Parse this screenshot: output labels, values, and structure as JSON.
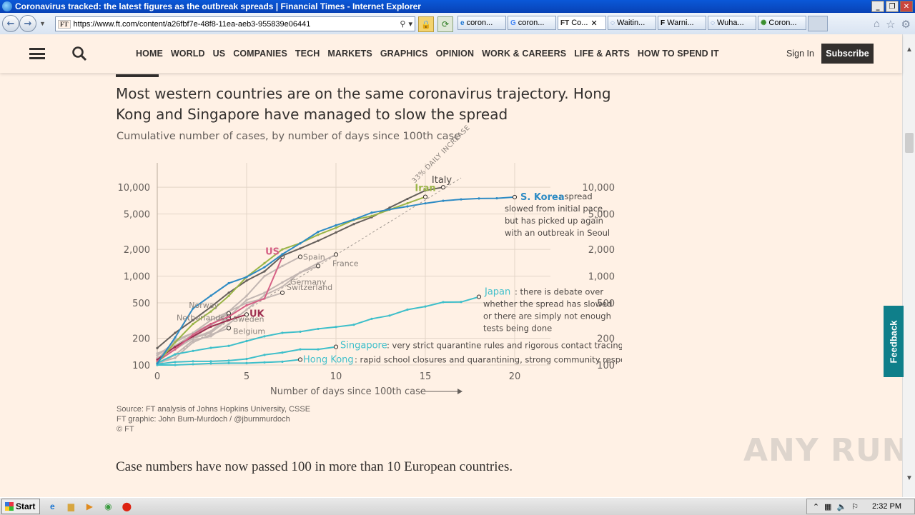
{
  "window": {
    "title": "Coronavirus tracked: the latest figures as the outbreak spreads | Financial Times - Internet Explorer"
  },
  "browser": {
    "url": "https://www.ft.com/content/a26fbf7e-48f8-11ea-aeb3-955839e06441",
    "favicon_text": "FT",
    "tabs": [
      {
        "label": "coron...",
        "icon": "ie-icon"
      },
      {
        "label": "coron...",
        "icon": "google-icon"
      },
      {
        "label": "Co...",
        "icon": "ft-icon",
        "active": true
      },
      {
        "label": "Waitin...",
        "icon": "loading-icon"
      },
      {
        "label": "Warni...",
        "icon": "f-icon"
      },
      {
        "label": "Wuha...",
        "icon": "loading-icon"
      },
      {
        "label": "Coron...",
        "icon": "virus-icon"
      }
    ]
  },
  "ft_header": {
    "nav": [
      "HOME",
      "WORLD",
      "US",
      "COMPANIES",
      "TECH",
      "MARKETS",
      "GRAPHICS",
      "OPINION",
      "WORK & CAREERS",
      "LIFE & ARTS",
      "HOW TO SPEND IT"
    ],
    "signin": "Sign In",
    "subscribe": "Subscribe"
  },
  "article": {
    "chart_title": "Most western countries are on the same coronavirus trajectory. Hong Kong and Singapore have managed to slow the spread",
    "chart_subtitle": "Cumulative number of cases, by number of days since 100th case",
    "source": [
      "Source: FT analysis of Johns Hopkins University, CSSE",
      "FT graphic: John Burn-Murdoch / @jburnmurdoch",
      "© FT"
    ],
    "body": "Case numbers have now passed 100 in more than 10 European countries."
  },
  "feedback": "Feedback",
  "watermark": "ANY RUN",
  "taskbar": {
    "start": "Start",
    "time": "2:32 PM"
  },
  "colors": {
    "background": "#fff1e5",
    "accent": "#33302e"
  },
  "chart_data": {
    "type": "line",
    "xlabel": "Number of days since 100th case",
    "xlim": [
      0,
      22
    ],
    "ylim": [
      100,
      13000
    ],
    "yscale": "log",
    "x_ticks": [
      0,
      5,
      10,
      15,
      20
    ],
    "y_ticks": [
      100,
      200,
      500,
      1000,
      2000,
      5000,
      10000
    ],
    "y_tick_labels": [
      "100",
      "200",
      "500",
      "1,000",
      "2,000",
      "5,000",
      "10,000"
    ],
    "reference_line": {
      "label": "33% DAILY INCREASE",
      "rate": 1.33
    },
    "series": [
      {
        "name": "Iran",
        "color": "#9bb548",
        "values": [
          [
            0,
            105
          ],
          [
            1,
            180
          ],
          [
            2,
            290
          ],
          [
            3,
            400
          ],
          [
            4,
            600
          ],
          [
            5,
            980
          ],
          [
            6,
            1400
          ],
          [
            7,
            2000
          ],
          [
            8,
            2350
          ],
          [
            9,
            2920
          ],
          [
            10,
            3500
          ],
          [
            11,
            4300
          ],
          [
            12,
            4750
          ],
          [
            13,
            5600
          ],
          [
            14,
            6600
          ],
          [
            15,
            7800
          ]
        ]
      },
      {
        "name": "Italy",
        "color": "#66605c",
        "values": [
          [
            0,
            155
          ],
          [
            1,
            230
          ],
          [
            2,
            320
          ],
          [
            3,
            450
          ],
          [
            4,
            650
          ],
          [
            5,
            890
          ],
          [
            6,
            1130
          ],
          [
            7,
            1700
          ],
          [
            8,
            2050
          ],
          [
            9,
            2500
          ],
          [
            10,
            3100
          ],
          [
            11,
            3850
          ],
          [
            12,
            4600
          ],
          [
            13,
            5900
          ],
          [
            14,
            7400
          ],
          [
            15,
            9200
          ],
          [
            16,
            10000
          ]
        ]
      },
      {
        "name": "S. Korea",
        "color": "#2e8bc4",
        "values": [
          [
            0,
            104
          ],
          [
            1,
            204
          ],
          [
            2,
            433
          ],
          [
            3,
            602
          ],
          [
            4,
            833
          ],
          [
            5,
            977
          ],
          [
            6,
            1261
          ],
          [
            7,
            1766
          ],
          [
            8,
            2337
          ],
          [
            9,
            3150
          ],
          [
            10,
            3736
          ],
          [
            11,
            4335
          ],
          [
            12,
            5186
          ],
          [
            13,
            5621
          ],
          [
            14,
            6088
          ],
          [
            15,
            6593
          ],
          [
            16,
            7041
          ],
          [
            17,
            7313
          ],
          [
            18,
            7478
          ],
          [
            19,
            7513
          ],
          [
            20,
            7755
          ]
        ]
      },
      {
        "name": "US",
        "color": "#d66085",
        "values": [
          [
            0,
            110
          ],
          [
            1,
            150
          ],
          [
            2,
            220
          ],
          [
            3,
            290
          ],
          [
            4,
            350
          ],
          [
            5,
            470
          ],
          [
            6,
            560
          ],
          [
            7,
            1650
          ]
        ]
      },
      {
        "name": "Spain",
        "color": "#c2b6b2",
        "values": [
          [
            0,
            115
          ],
          [
            1,
            165
          ],
          [
            2,
            220
          ],
          [
            3,
            280
          ],
          [
            4,
            400
          ],
          [
            5,
            600
          ],
          [
            6,
            1000
          ],
          [
            7,
            1300
          ],
          [
            8,
            1650
          ]
        ]
      },
      {
        "name": "France",
        "color": "#c2b6b2",
        "values": [
          [
            0,
            100
          ],
          [
            1,
            130
          ],
          [
            2,
            190
          ],
          [
            3,
            210
          ],
          [
            4,
            290
          ],
          [
            5,
            420
          ],
          [
            6,
            610
          ],
          [
            7,
            760
          ],
          [
            8,
            1100
          ],
          [
            9,
            1400
          ],
          [
            10,
            1750
          ]
        ]
      },
      {
        "name": "Germany",
        "color": "#c2b6b2",
        "values": [
          [
            0,
            120
          ],
          [
            1,
            160
          ],
          [
            2,
            200
          ],
          [
            3,
            240
          ],
          [
            4,
            350
          ],
          [
            5,
            540
          ],
          [
            6,
            650
          ],
          [
            7,
            850
          ],
          [
            8,
            1100
          ],
          [
            9,
            1300
          ]
        ]
      },
      {
        "name": "Switzerland",
        "color": "#c2b6b2",
        "values": [
          [
            0,
            115
          ],
          [
            1,
            190
          ],
          [
            2,
            230
          ],
          [
            3,
            320
          ],
          [
            4,
            400
          ],
          [
            5,
            500
          ],
          [
            6,
            560
          ],
          [
            7,
            650
          ]
        ]
      },
      {
        "name": "Norway",
        "color": "#c2b6b2",
        "values": [
          [
            0,
            110
          ],
          [
            1,
            150
          ],
          [
            2,
            200
          ],
          [
            3,
            280
          ],
          [
            4,
            380
          ]
        ]
      },
      {
        "name": "Netherlands",
        "color": "#c2b6b2",
        "values": [
          [
            0,
            128
          ],
          [
            1,
            180
          ],
          [
            2,
            230
          ],
          [
            3,
            290
          ],
          [
            4,
            350
          ]
        ]
      },
      {
        "name": "Sweden",
        "color": "#c2b6b2",
        "values": [
          [
            0,
            135
          ],
          [
            1,
            165
          ],
          [
            2,
            200
          ],
          [
            3,
            230
          ],
          [
            4,
            330
          ]
        ]
      },
      {
        "name": "Belgium",
        "color": "#c2b6b2",
        "values": [
          [
            0,
            105
          ],
          [
            1,
            120
          ],
          [
            2,
            180
          ],
          [
            3,
            220
          ],
          [
            4,
            260
          ]
        ]
      },
      {
        "name": "UK",
        "color": "#9e2f50",
        "values": [
          [
            0,
            115
          ],
          [
            1,
            160
          ],
          [
            2,
            210
          ],
          [
            3,
            270
          ],
          [
            4,
            320
          ],
          [
            5,
            370
          ]
        ]
      },
      {
        "name": "Japan",
        "color": "#3fbfca",
        "values": [
          [
            0,
            105
          ],
          [
            1,
            132
          ],
          [
            2,
            144
          ],
          [
            3,
            156
          ],
          [
            4,
            164
          ],
          [
            5,
            186
          ],
          [
            6,
            210
          ],
          [
            7,
            230
          ],
          [
            8,
            237
          ],
          [
            9,
            255
          ],
          [
            10,
            268
          ],
          [
            11,
            284
          ],
          [
            12,
            331
          ],
          [
            13,
            360
          ],
          [
            14,
            420
          ],
          [
            15,
            455
          ],
          [
            16,
            510
          ],
          [
            17,
            512
          ],
          [
            18,
            585
          ]
        ]
      },
      {
        "name": "Singapore",
        "color": "#3fbfca",
        "values": [
          [
            0,
            102
          ],
          [
            1,
            108
          ],
          [
            2,
            110
          ],
          [
            3,
            110
          ],
          [
            4,
            112
          ],
          [
            5,
            117
          ],
          [
            6,
            130
          ],
          [
            7,
            138
          ],
          [
            8,
            150
          ],
          [
            9,
            150
          ],
          [
            10,
            160
          ]
        ]
      },
      {
        "name": "Hong Kong",
        "color": "#3fbfca",
        "values": [
          [
            0,
            100
          ],
          [
            1,
            100
          ],
          [
            2,
            102
          ],
          [
            3,
            104
          ],
          [
            4,
            105
          ],
          [
            5,
            105
          ],
          [
            6,
            107
          ],
          [
            7,
            109
          ],
          [
            8,
            115
          ]
        ]
      }
    ],
    "annotations": [
      {
        "series": "S. Korea",
        "text": [
          "spread",
          "slowed from initial pace,",
          "but has picked up again",
          "with an outbreak in Seoul"
        ]
      },
      {
        "series": "Japan",
        "text": [
          "there is debate over",
          "whether the spread has slowed",
          "or there are simply not enough",
          "tests being done"
        ]
      },
      {
        "series": "Singapore",
        "text": [
          "very strict quarantine rules and rigorous contact tracing"
        ]
      },
      {
        "series": "Hong Kong",
        "text": [
          "rapid school closures and quarantining, strong community response"
        ]
      }
    ]
  }
}
